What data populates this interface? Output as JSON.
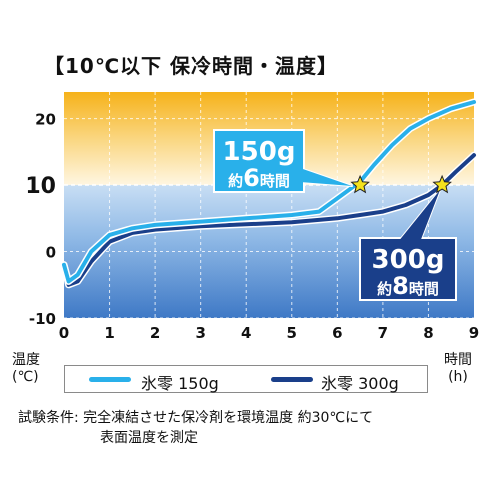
{
  "title": "【10℃以下  保冷時間・温度】",
  "y_unit": [
    "温度",
    "(℃)"
  ],
  "x_unit": [
    "時間",
    "(h)"
  ],
  "colors": {
    "light_line": "#29b0ea",
    "dark_line": "#1a3f8a",
    "star": "#f4e21c"
  },
  "chart_data": {
    "type": "line",
    "x": [
      0,
      0.2,
      0.5,
      1,
      1.5,
      2,
      3,
      4,
      5,
      5.6,
      6,
      6.5,
      7,
      8,
      8.3,
      9
    ],
    "xticks": [
      "0",
      "1",
      "2",
      "3",
      "4",
      "5",
      "6",
      "7",
      "8",
      "9"
    ],
    "yticks": [
      "20",
      "10",
      "0",
      "-10"
    ],
    "xlim": [
      0,
      9
    ],
    "ylim": [
      -10,
      24
    ],
    "series": [
      {
        "name": "氷零 150g",
        "x": [
          0,
          0.1,
          0.3,
          0.6,
          1.0,
          1.5,
          2,
          3,
          4,
          5,
          5.6,
          6,
          6.3,
          6.5,
          6.8,
          7.2,
          7.6,
          8,
          8.5,
          9
        ],
        "y": [
          -2,
          -4.5,
          -3.5,
          0,
          2.5,
          3.5,
          4,
          4.5,
          5,
          5.5,
          6,
          8,
          9.5,
          10.5,
          13,
          16,
          18.5,
          20,
          21.5,
          22.5
        ]
      },
      {
        "name": "氷零 300g",
        "x": [
          0,
          0.1,
          0.3,
          0.6,
          1.0,
          1.5,
          2,
          3,
          4,
          5,
          6,
          6.5,
          7,
          7.5,
          8,
          8.3,
          8.6,
          9
        ],
        "y": [
          -2,
          -5,
          -4.5,
          -1.5,
          1.5,
          2.8,
          3.3,
          3.8,
          4.1,
          4.4,
          5,
          5.5,
          6,
          7,
          8.5,
          10,
          12,
          14.5
        ]
      }
    ],
    "annotations": [
      {
        "weight": "150g",
        "time_prefix": "約",
        "time_value": "6",
        "time_suffix": "時間",
        "point_x": 6.5,
        "point_y": 10
      },
      {
        "weight": "300g",
        "time_prefix": "約",
        "time_value": "8",
        "time_suffix": "時間",
        "point_x": 8.3,
        "point_y": 10
      }
    ],
    "legend": [
      {
        "label": "氷零 150g"
      },
      {
        "label": "氷零 300g"
      }
    ]
  },
  "note": {
    "line1": "試験条件: 完全凍結させた保冷剤を環境温度 約30℃にて",
    "line2": "表面温度を測定"
  }
}
